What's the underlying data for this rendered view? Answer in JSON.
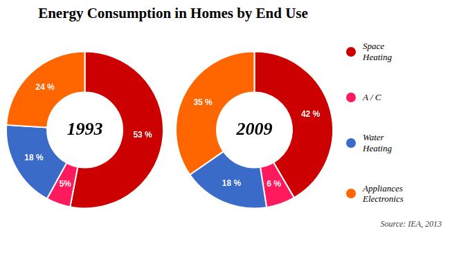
{
  "chart_data": {
    "type": "doughnut",
    "title": "Energy Consumption in Homes by End Use",
    "categories": [
      "Space\nHeating",
      "A / C",
      "Water\nHeating",
      "Appliances\nElectronics"
    ],
    "colors": [
      "#cc0000",
      "#ff1a5e",
      "#3a6bc9",
      "#ff6600"
    ],
    "series": [
      {
        "name": "1993",
        "values": [
          53,
          5,
          18,
          24
        ],
        "value_labels": [
          "53 %",
          "5%",
          "18 %",
          "24 %"
        ]
      },
      {
        "name": "2009",
        "values": [
          42,
          6,
          18,
          35
        ],
        "value_labels": [
          "42 %",
          "6 %",
          "18 %",
          "35 %"
        ]
      }
    ],
    "data_labels": true,
    "legend": "right",
    "annotations": [
      "Source: IEA, 2013"
    ]
  }
}
